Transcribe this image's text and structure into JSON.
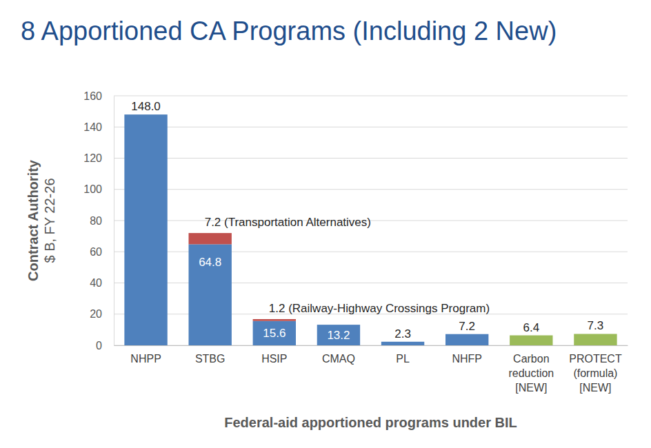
{
  "chart_data": {
    "type": "bar",
    "title": "8 Apportioned CA Programs (Including 2 New)",
    "xlabel": "Federal-aid apportioned programs under BIL",
    "ylabel": "Contract Authority",
    "ylabel_sub": "$ B, FY 22-26",
    "categories": [
      "NHPP",
      "STBG",
      "HSIP",
      "CMAQ",
      "PL",
      "NHFP",
      "Carbon reduction [NEW]",
      "PROTECT (formula) [NEW]"
    ],
    "series": [
      {
        "values": [
          148.0,
          64.8,
          15.6,
          13.2,
          2.3,
          7.2,
          6.4,
          7.3
        ],
        "value_labels": [
          "148.0",
          "64.8",
          "15.6",
          "13.2",
          "2.3",
          "7.2",
          "6.4",
          "7.3"
        ],
        "colors": [
          "#4f81bd",
          "#4f81bd",
          "#4f81bd",
          "#4f81bd",
          "#4f81bd",
          "#4f81bd",
          "#9bbb59",
          "#9bbb59"
        ]
      },
      {
        "values": [
          null,
          7.2,
          1.2,
          null,
          null,
          null,
          null,
          null
        ],
        "value_labels": [
          null,
          "7.2 (Transportation Alternatives)",
          "1.2 (Railway-Highway Crossings Program)",
          null,
          null,
          null,
          null,
          null
        ],
        "color": "#c0504d"
      }
    ],
    "stacked": true,
    "data_labels": true,
    "ylim": [
      0,
      160
    ],
    "yticks": [
      0,
      20,
      40,
      60,
      80,
      100,
      120,
      140,
      160
    ],
    "grid": true
  }
}
